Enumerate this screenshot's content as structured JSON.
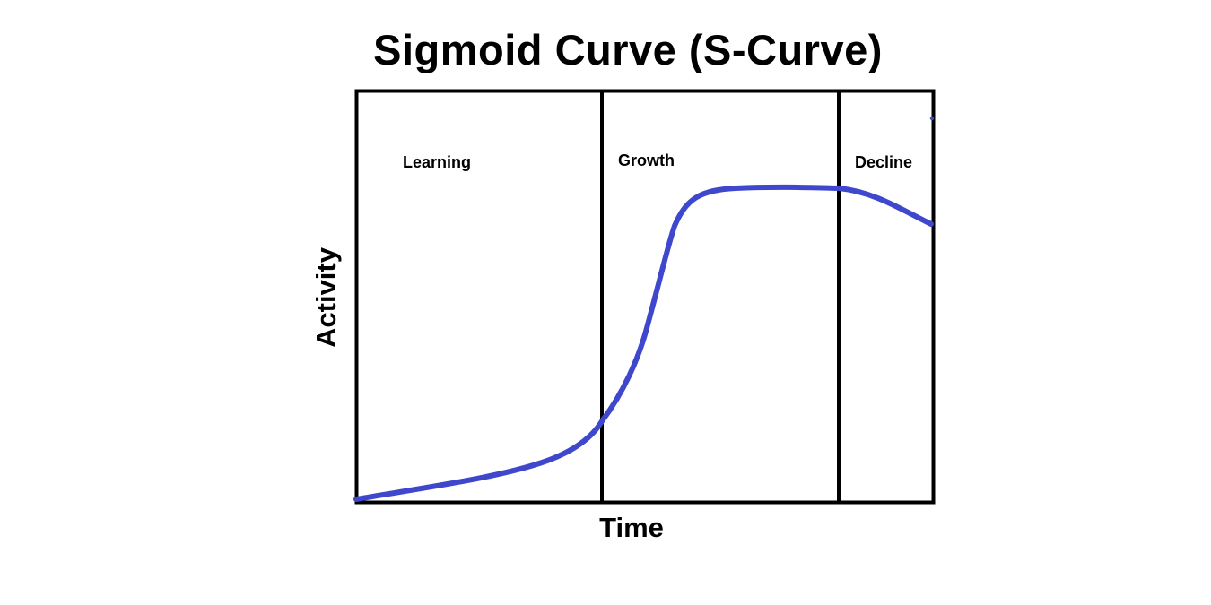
{
  "title": "Sigmoid Curve (S-Curve)",
  "axes": {
    "x_label": "Time",
    "y_label": "Activity"
  },
  "phases": [
    {
      "label": "Learning"
    },
    {
      "label": "Growth"
    },
    {
      "label": "Decline"
    }
  ],
  "colors": {
    "curve": "#3f48cc",
    "frame": "#000000",
    "background": "#ffffff"
  }
}
